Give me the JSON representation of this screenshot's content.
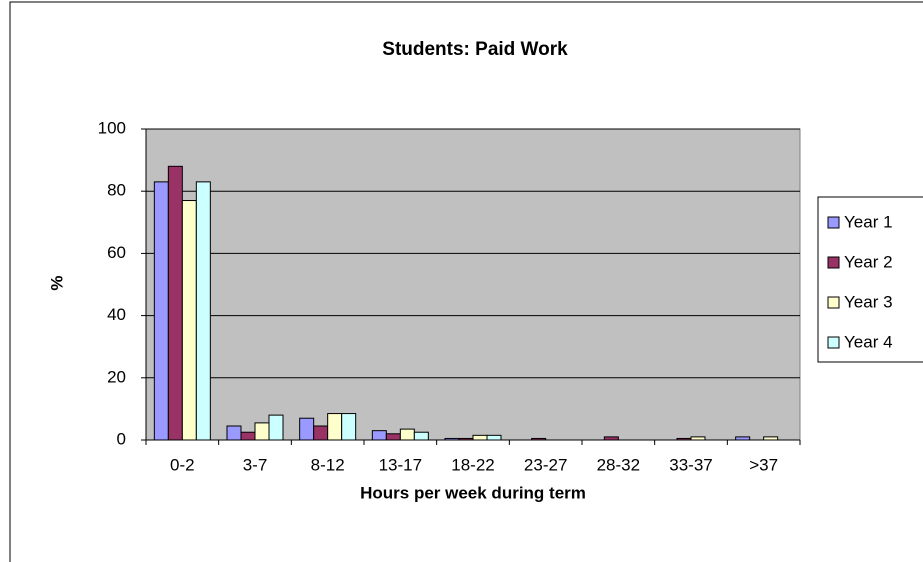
{
  "chart_data": {
    "type": "bar",
    "title": "Students: Paid Work",
    "x_label": "Hours per week during term",
    "y_label": "%",
    "categories": [
      "0-2",
      "3-7",
      "8-12",
      "13-17",
      "18-22",
      "23-27",
      "28-32",
      "33-37",
      ">37"
    ],
    "series": [
      {
        "name": "Year 1",
        "color": "#9999ff",
        "values": [
          83,
          4.5,
          7,
          3,
          0.5,
          0,
          0,
          0,
          1
        ]
      },
      {
        "name": "Year 2",
        "color": "#993366",
        "values": [
          88,
          2.5,
          4.5,
          2,
          0.5,
          0.5,
          1,
          0.5,
          0
        ]
      },
      {
        "name": "Year 3",
        "color": "#ffffcc",
        "values": [
          77,
          5.5,
          8.5,
          3.5,
          1.5,
          0,
          0,
          1,
          1
        ]
      },
      {
        "name": "Year 4",
        "color": "#ccffff",
        "values": [
          83,
          8,
          8.5,
          2.5,
          1.5,
          0,
          0,
          0,
          0
        ]
      }
    ],
    "ylim": [
      0,
      100
    ],
    "yticks": [
      0,
      20,
      40,
      60,
      80,
      100
    ],
    "grid": true,
    "legend": "right"
  }
}
